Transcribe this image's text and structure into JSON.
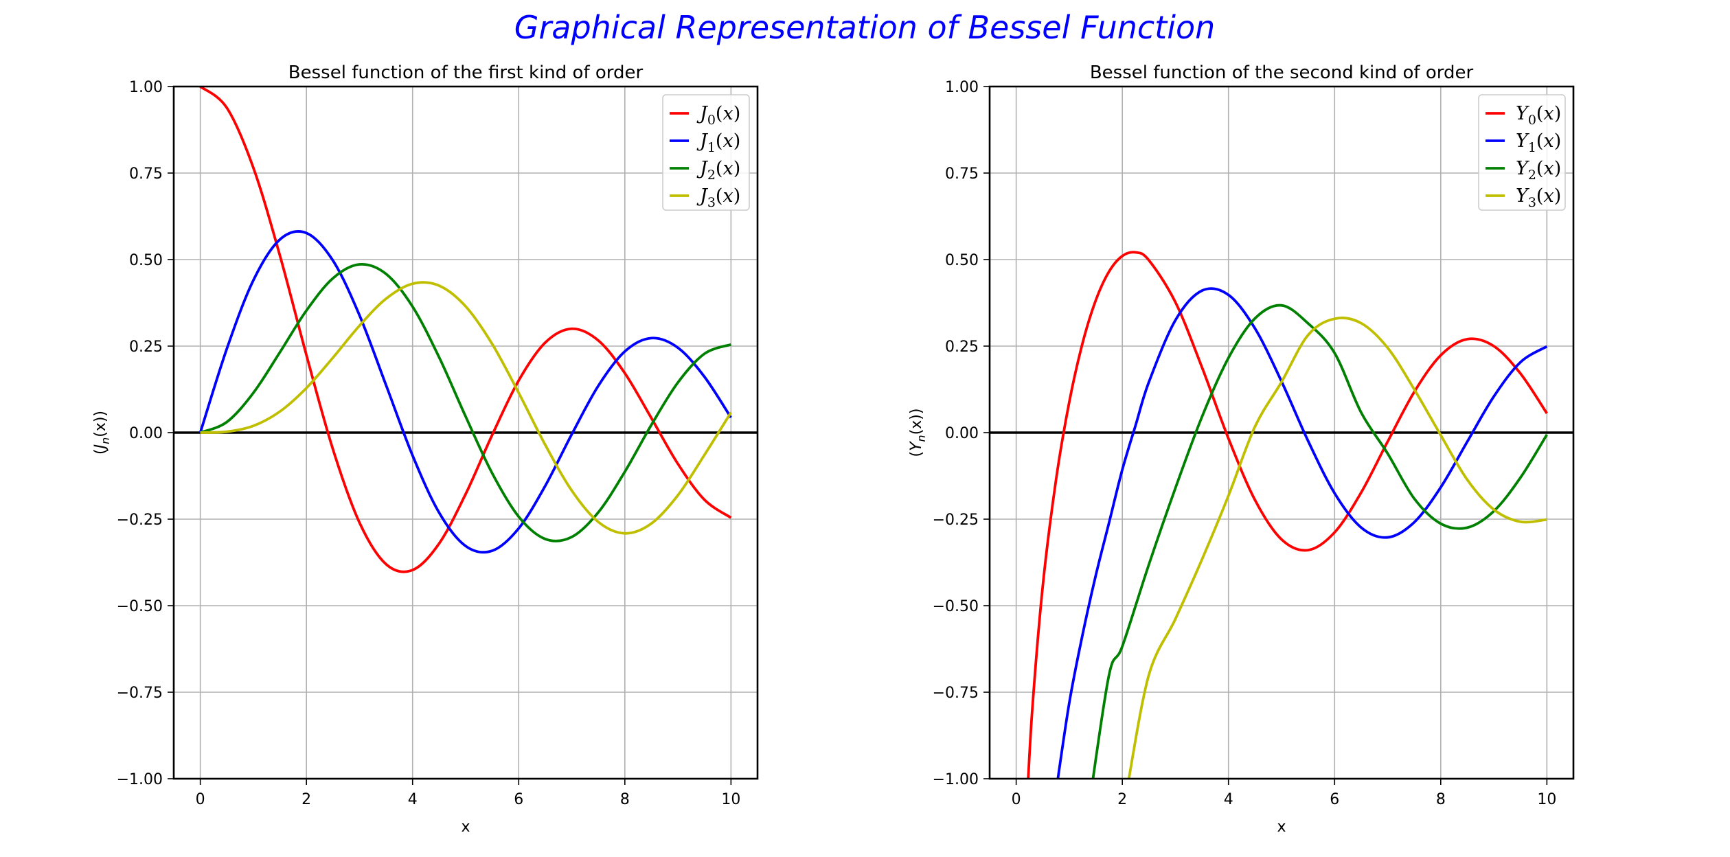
{
  "figure": {
    "title": "Graphical Representation of Bessel Function",
    "title_color": "#0000ff"
  },
  "chart_data": [
    {
      "type": "line",
      "title": "Bessel function of the first kind of order",
      "xlabel": "x",
      "ylabel": "(J_n(x))",
      "ylabel_parts": {
        "open": "(",
        "sym": "J",
        "sub": "n",
        "rest": "(x))"
      },
      "xlim": [
        -0.5,
        10.5
      ],
      "ylim": [
        -1.0,
        1.0
      ],
      "xticks": [
        0,
        2,
        4,
        6,
        8,
        10
      ],
      "xtick_labels": [
        "0",
        "2",
        "4",
        "6",
        "8",
        "10"
      ],
      "yticks": [
        1.0,
        0.75,
        0.5,
        0.25,
        0.0,
        -0.25,
        -0.5,
        -0.75,
        -1.0
      ],
      "ytick_labels": [
        "1.00",
        "0.75",
        "0.50",
        "0.25",
        "0.00",
        "−0.25",
        "−0.50",
        "−0.75",
        "−1.00"
      ],
      "grid": true,
      "zero_line": true,
      "legend_position": "top-right",
      "legend": [
        {
          "sym": "J",
          "sub": "0",
          "arg": "(x)",
          "color": "#ff0000"
        },
        {
          "sym": "J",
          "sub": "1",
          "arg": "(x)",
          "color": "#0000ff"
        },
        {
          "sym": "J",
          "sub": "2",
          "arg": "(x)",
          "color": "#008000"
        },
        {
          "sym": "J",
          "sub": "3",
          "arg": "(x)",
          "color": "#bfbf00"
        }
      ],
      "x": [
        0,
        0.5,
        1,
        1.5,
        2,
        2.5,
        3,
        3.5,
        4,
        4.5,
        5,
        5.5,
        6,
        6.5,
        7,
        7.5,
        8,
        8.5,
        9,
        9.5,
        10
      ],
      "series": [
        {
          "name": "J_0(x)",
          "color": "#ff0000",
          "values": [
            1.0,
            0.9385,
            0.7652,
            0.5118,
            0.2239,
            -0.0484,
            -0.2601,
            -0.3801,
            -0.3971,
            -0.3205,
            -0.1776,
            -0.0068,
            0.1506,
            0.2601,
            0.3001,
            0.2663,
            0.1717,
            0.0419,
            -0.0903,
            -0.1939,
            -0.2459
          ]
        },
        {
          "name": "J_1(x)",
          "color": "#0000ff",
          "values": [
            0.0,
            0.2423,
            0.4401,
            0.5579,
            0.5767,
            0.4971,
            0.3391,
            0.1374,
            -0.066,
            -0.2311,
            -0.3276,
            -0.3414,
            -0.2767,
            -0.1538,
            -0.0047,
            0.1352,
            0.2346,
            0.2731,
            0.2453,
            0.1613,
            0.0435
          ]
        },
        {
          "name": "J_2(x)",
          "color": "#008000",
          "values": [
            0.0,
            0.0306,
            0.1149,
            0.2321,
            0.3528,
            0.4461,
            0.4861,
            0.4586,
            0.3641,
            0.2178,
            0.0466,
            -0.1173,
            -0.2429,
            -0.3074,
            -0.3014,
            -0.2303,
            -0.113,
            0.0223,
            0.1448,
            0.2279,
            0.2546
          ]
        },
        {
          "name": "J_3(x)",
          "color": "#bfbf00",
          "values": [
            0.0,
            0.0026,
            0.0196,
            0.061,
            0.1289,
            0.2166,
            0.3091,
            0.3868,
            0.4302,
            0.4247,
            0.3648,
            0.2561,
            0.1148,
            -0.0353,
            -0.1676,
            -0.2581,
            -0.2911,
            -0.2626,
            -0.1809,
            -0.0645,
            0.0584
          ]
        }
      ]
    },
    {
      "type": "line",
      "title": "Bessel function of the second kind of order",
      "xlabel": "x",
      "ylabel": "(Y_n(x))",
      "ylabel_parts": {
        "open": "(",
        "sym": "Y",
        "sub": "n",
        "rest": "(x))"
      },
      "xlim": [
        -0.5,
        10.5
      ],
      "ylim": [
        -1.0,
        1.0
      ],
      "xticks": [
        0,
        2,
        4,
        6,
        8,
        10
      ],
      "xtick_labels": [
        "0",
        "2",
        "4",
        "6",
        "8",
        "10"
      ],
      "yticks": [
        1.0,
        0.75,
        0.5,
        0.25,
        0.0,
        -0.25,
        -0.5,
        -0.75,
        -1.0
      ],
      "ytick_labels": [
        "1.00",
        "0.75",
        "0.50",
        "0.25",
        "0.00",
        "−0.25",
        "−0.50",
        "−0.75",
        "−1.00"
      ],
      "grid": true,
      "zero_line": true,
      "legend_position": "top-right",
      "legend": [
        {
          "sym": "Y",
          "sub": "0",
          "arg": "(x)",
          "color": "#ff0000"
        },
        {
          "sym": "Y",
          "sub": "1",
          "arg": "(x)",
          "color": "#0000ff"
        },
        {
          "sym": "Y",
          "sub": "2",
          "arg": "(x)",
          "color": "#008000"
        },
        {
          "sym": "Y",
          "sub": "3",
          "arg": "(x)",
          "color": "#bfbf00"
        }
      ],
      "series": [
        {
          "name": "Y_0(x)",
          "color": "#ff0000",
          "x": [
            0.2,
            0.3,
            0.5,
            0.75,
            1,
            1.25,
            1.5,
            1.75,
            2,
            2.25,
            2.5,
            3,
            3.5,
            4,
            4.5,
            5,
            5.5,
            6,
            6.5,
            7,
            7.5,
            8,
            8.5,
            9,
            9.5,
            10
          ],
          "values": [
            -1.0811,
            -0.8073,
            -0.4445,
            -0.1372,
            0.0883,
            0.2582,
            0.3824,
            0.4654,
            0.5104,
            0.5208,
            0.4981,
            0.3769,
            0.189,
            -0.0169,
            -0.1947,
            -0.3085,
            -0.3395,
            -0.2882,
            -0.1732,
            -0.0259,
            0.1173,
            0.2235,
            0.2702,
            0.2499,
            0.1712,
            0.0557
          ]
        },
        {
          "name": "Y_1(x)",
          "color": "#0000ff",
          "x": [
            0.75,
            1,
            1.25,
            1.5,
            1.75,
            2,
            2.25,
            2.5,
            3,
            3.5,
            4,
            4.5,
            5,
            5.5,
            6,
            6.5,
            7,
            7.5,
            8,
            8.5,
            9,
            9.5,
            10
          ],
          "values": [
            -1.0377,
            -0.7812,
            -0.5844,
            -0.4123,
            -0.2602,
            -0.107,
            0.0211,
            0.1459,
            0.3247,
            0.4102,
            0.3979,
            0.301,
            0.1479,
            -0.0238,
            -0.175,
            -0.2741,
            -0.3027,
            -0.2591,
            -0.1581,
            -0.0262,
            0.1043,
            0.2032,
            0.249
          ]
        },
        {
          "name": "Y_2(x)",
          "color": "#008000",
          "x": [
            1.4,
            1.75,
            2,
            2.5,
            3,
            3.5,
            4,
            4.5,
            5,
            5.5,
            6,
            6.5,
            7,
            7.5,
            8,
            8.5,
            9,
            9.5,
            10
          ],
          "values": [
            -1.05,
            -0.7,
            -0.6174,
            -0.3813,
            -0.1604,
            0.0453,
            0.2159,
            0.3301,
            0.3677,
            0.3156,
            0.2299,
            0.0583,
            -0.0605,
            -0.1905,
            -0.263,
            -0.2745,
            -0.2269,
            -0.1305,
            -0.0059
          ]
        },
        {
          "name": "Y_3(x)",
          "color": "#bfbf00",
          "x": [
            2.1,
            2.5,
            3,
            3.5,
            4,
            4.5,
            5,
            5.5,
            6,
            6.5,
            7,
            7.5,
            8,
            8.5,
            9,
            9.5,
            10
          ],
          "values": [
            -1.02,
            -0.7,
            -0.5385,
            -0.3669,
            -0.1821,
            0.0174,
            0.1463,
            0.2818,
            0.329,
            0.3162,
            0.2449,
            0.1252,
            -0.0074,
            -0.1362,
            -0.2223,
            -0.2575,
            -0.2513
          ]
        }
      ]
    }
  ]
}
